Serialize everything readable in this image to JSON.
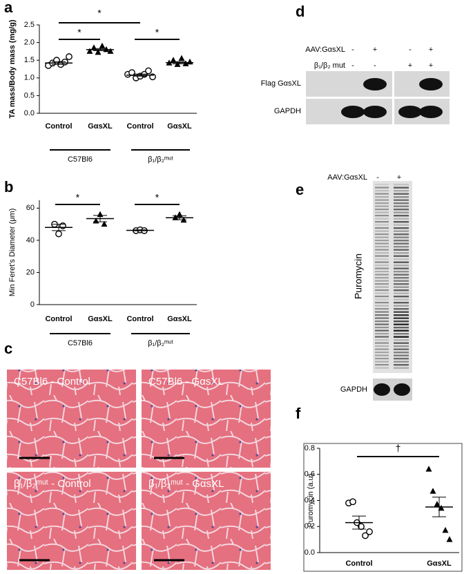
{
  "chart_data": [
    {
      "type": "dot",
      "ylabel": "TA mass/Body mass (mg/g)",
      "categories": [
        "Control",
        "GαsXL",
        "Control",
        "GαsXL"
      ],
      "groups": [
        "C57Bl6",
        "β₁/β₂ᵐᵘᵗ"
      ],
      "markers": [
        "circle",
        "triangle",
        "circle",
        "triangle"
      ],
      "points": [
        [
          1.35,
          1.42,
          1.5,
          1.38,
          1.45,
          1.6
        ],
        [
          1.75,
          1.85,
          1.72,
          1.9,
          1.8,
          1.75
        ],
        [
          1.1,
          1.15,
          1.0,
          1.05,
          1.1,
          1.2,
          1.03
        ],
        [
          1.42,
          1.5,
          1.38,
          1.55,
          1.4,
          1.45
        ]
      ],
      "means": [
        1.42,
        1.8,
        1.08,
        1.43
      ],
      "sem": [
        0.04,
        0.03,
        0.03,
        0.03
      ],
      "annotations": [
        "*",
        "*",
        "*"
      ],
      "ylim": [
        0,
        2.5
      ],
      "yticks": [
        {
          "value": 0,
          "label": "0.0"
        },
        0.5,
        {
          "value": 1,
          "label": "1.0"
        },
        1.5,
        {
          "value": 2,
          "label": "2.0"
        },
        2.5
      ]
    },
    {
      "type": "dot",
      "ylabel": "Min Feret's Diameter (μm)",
      "categories": [
        "Control",
        "GαsXL",
        "Control",
        "GαsXL"
      ],
      "groups": [
        "C57Bl6",
        "β₁/β₂ᵐᵘᵗ"
      ],
      "markers": [
        "circle",
        "triangle",
        "circle",
        "triangle"
      ],
      "points": [
        [
          50,
          44,
          49
        ],
        [
          52,
          56,
          50
        ],
        [
          46,
          46.5,
          46
        ],
        [
          54,
          56,
          52.5
        ]
      ],
      "means": [
        48,
        53.5,
        46.2,
        54
      ],
      "sem": [
        2,
        2,
        0.3,
        1.2
      ],
      "annotations": [
        "*",
        "*"
      ],
      "ylim": [
        0,
        65
      ],
      "yticks": [
        0,
        20,
        40,
        60
      ]
    },
    {
      "type": "dot",
      "ylabel": "Puromycin (a.u)",
      "categories": [
        "Control",
        "GαsXL"
      ],
      "markers": [
        "circle",
        "triangle"
      ],
      "points": [
        [
          0.38,
          0.39,
          0.23,
          0.2,
          0.13,
          0.16
        ],
        [
          0.64,
          0.47,
          0.37,
          0.34,
          0.17,
          0.1
        ]
      ],
      "means": [
        0.23,
        0.35
      ],
      "sem": [
        0.05,
        0.075
      ],
      "annotations": [
        "†"
      ],
      "ylim": [
        0,
        0.8
      ],
      "yticks": [
        {
          "value": 0,
          "label": "0.0"
        },
        0.2,
        0.4,
        0.6,
        0.8
      ]
    }
  ],
  "panels": {
    "a": "a",
    "b": "b",
    "c": "c",
    "d": "d",
    "e": "e",
    "f": "f"
  },
  "histology": [
    "C57Bl6 - Control",
    "C57Bl6 - GαsXL",
    "β₁/β₂ᵐᵘᵗ - Control",
    "β₁/β₂ᵐᵘᵗ - GαsXL"
  ],
  "blot_d": {
    "rows": [
      {
        "label": "AAV:GαsXL",
        "signs": [
          "-",
          "+",
          "-",
          "+"
        ]
      },
      {
        "label": "β₁/β₂ mut",
        "signs": [
          "-",
          "-",
          "+",
          "+"
        ]
      }
    ],
    "bands": [
      "Flag GαsXL",
      "GAPDH"
    ]
  },
  "blot_e": {
    "label": "AAV:GαsXL",
    "signs": [
      "-",
      "+"
    ],
    "ylabel": "Puromycin",
    "loading": "GAPDH"
  }
}
